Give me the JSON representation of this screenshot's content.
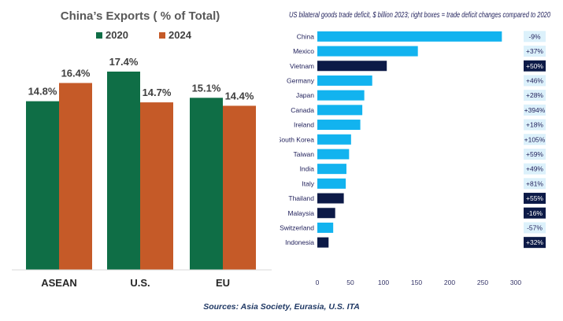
{
  "colors": {
    "green": "#0f6e46",
    "orange": "#c55a28",
    "light_blue": "#12b3ef",
    "dark_navy": "#0c1a47",
    "box_light": "#dcf1fb"
  },
  "chart_data": [
    {
      "type": "bar",
      "title": "China’s Exports ( % of Total)",
      "categories": [
        "ASEAN",
        "U.S.",
        "EU"
      ],
      "series": [
        {
          "name": "2020",
          "values": [
            14.8,
            17.4,
            15.1
          ],
          "labels": [
            "14.8%",
            "17.4%",
            "15.1%"
          ]
        },
        {
          "name": "2024",
          "values": [
            16.4,
            14.7,
            14.4
          ],
          "labels": [
            "16.4%",
            "14.7%",
            "14.4%"
          ]
        }
      ],
      "ylim": [
        0,
        20
      ],
      "xlabel": "",
      "ylabel": "",
      "grid": false,
      "legend": "top"
    },
    {
      "type": "bar",
      "orientation": "horizontal",
      "title": "US bilateral goods trade deficit, $ billion 2023; right boxes = trade deficit changes compared to 2020",
      "categories": [
        "China",
        "Mexico",
        "Vietnam",
        "Germany",
        "Japan",
        "Canada",
        "Ireland",
        "South Korea",
        "Taiwan",
        "India",
        "Italy",
        "Thailand",
        "Malaysia",
        "Switzerland",
        "Indonesia"
      ],
      "values": [
        279,
        152,
        105,
        83,
        71,
        68,
        65,
        51,
        48,
        44,
        43,
        40,
        27,
        24,
        17
      ],
      "highlighted": [
        false,
        false,
        true,
        false,
        false,
        false,
        false,
        false,
        false,
        false,
        false,
        true,
        true,
        false,
        true
      ],
      "changes": [
        "-9%",
        "+37%",
        "+50%",
        "+46%",
        "+28%",
        "+394%",
        "+18%",
        "+105%",
        "+59%",
        "+49%",
        "+81%",
        "+55%",
        "-16%",
        "-57%",
        "+32%"
      ],
      "xticks": [
        0,
        50,
        100,
        150,
        200,
        250,
        300
      ],
      "xlim": [
        0,
        300
      ],
      "grid": false
    }
  ],
  "source_text": "Sources: Asia Society, Eurasia, U.S. ITA"
}
